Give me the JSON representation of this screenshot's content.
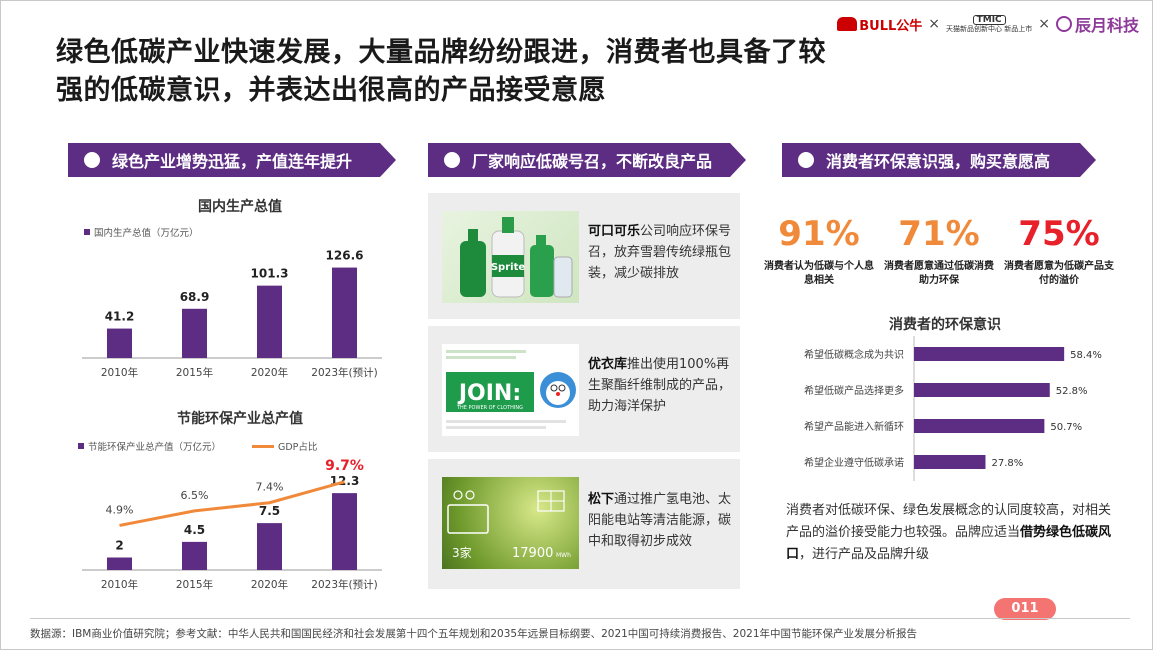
{
  "page": {
    "title_line1": "绿色低碳产业快速发展，大量品牌纷纷跟进，消费者也具备了较",
    "title_line2": "强的低碳意识，并表达出很高的产品接受意愿",
    "page_number": "011",
    "source": "数据源：IBM商业价值研究院；参考文献：中华人民共和国国民经济和社会发展第十四个五年规划和2035年远景目标纲要、2021中国可持续消费报告、2021年中国节能环保产业发展分析报告"
  },
  "logos": {
    "bull": "BULL公牛",
    "tmic_top": "TMIC",
    "tmic_bottom": "天猫新品创新中心 新品上市",
    "chenyue": "辰月科技",
    "sep": "×"
  },
  "banners": {
    "left": "绿色产业增势迅猛，产值连年提升",
    "middle": "厂家响应低碳号召，不断改良产品",
    "right": "消费者环保意识强，购买意愿高"
  },
  "brand_cards": [
    {
      "brand": "可口可乐",
      "text": "公司响应环保号召，放弃雪碧传统绿瓶包装，减少碳排放",
      "image_text": "Sprite"
    },
    {
      "brand": "优衣库",
      "text": "推出使用100%再生聚酯纤维制成的产品，助力海洋保护",
      "image_text": "JOIN:",
      "image_sub": "THE POWER OF CLOTHING"
    },
    {
      "brand": "松下",
      "text": "通过推广氢电池、太阳能电站等清洁能源，碳中和取得初步成效",
      "image_count": "3家",
      "image_value": "17900",
      "image_unit": "MWh"
    }
  ],
  "consumer_stats": [
    {
      "value": "91%",
      "label": "消费者认为低碳与个人息息相关",
      "color": "#f08a3a"
    },
    {
      "value": "71%",
      "label": "消费者愿意通过低碳消费助力环保",
      "color": "#f08a3a"
    },
    {
      "value": "75%",
      "label": "消费者愿意为低碳产品支付的溢价",
      "color": "#e8202a"
    }
  ],
  "summary": {
    "part1": "消费者对低碳环保、绿色发展概念的认同度较高，对相关产品的溢价接受能力也较强。品牌应适当",
    "bold": "借势绿色低碳风口",
    "part2": "，进行产品及品牌升级"
  },
  "chart_data": [
    {
      "type": "bar",
      "title": "国内生产总值",
      "categories": [
        "2010年",
        "2015年",
        "2020年",
        "2023年(预计)"
      ],
      "series": [
        {
          "name": "国内生产总值（万亿元）",
          "values": [
            41.2,
            68.9,
            101.3,
            126.6
          ],
          "labels": [
            "41.2",
            "68.9",
            "101.3",
            "126.6"
          ],
          "color": "#5c2d82"
        }
      ],
      "ylim": [
        0,
        140
      ],
      "legend": "top-left",
      "grid": false
    },
    {
      "type": "bar",
      "title": "节能环保产业总产值",
      "categories": [
        "2010年",
        "2015年",
        "2020年",
        "2023年(预计)"
      ],
      "series": [
        {
          "name": "节能环保产业总产值（万亿元）",
          "type": "bar",
          "values": [
            2,
            4.5,
            7.5,
            12.3
          ],
          "labels": [
            "2",
            "4.5",
            "7.5",
            "12.3"
          ],
          "color": "#5c2d82"
        },
        {
          "name": "GDP占比",
          "type": "line",
          "values": [
            4.9,
            6.5,
            7.4,
            9.7
          ],
          "labels": [
            "4.9%",
            "6.5%",
            "7.4%",
            "9.7%"
          ],
          "color": "#f08a3a",
          "highlight_color": "#e8202a"
        }
      ],
      "ylim": [
        0,
        16
      ],
      "ylim_secondary": [
        0,
        11
      ],
      "legend": "top",
      "grid": false
    },
    {
      "type": "bar",
      "orientation": "horizontal",
      "title": "消费者的环保意识",
      "categories": [
        "希望低碳概念成为共识",
        "希望低碳产品选择更多",
        "希望产品能进入新循环",
        "希望企业遵守低碳承诺"
      ],
      "series": [
        {
          "name": "",
          "values": [
            58.4,
            52.8,
            50.7,
            27.8
          ],
          "labels": [
            "58.4%",
            "52.8%",
            "50.7%",
            "27.8%"
          ],
          "color": "#5c2d82"
        }
      ],
      "xlim": [
        0,
        70
      ],
      "grid": false
    }
  ]
}
